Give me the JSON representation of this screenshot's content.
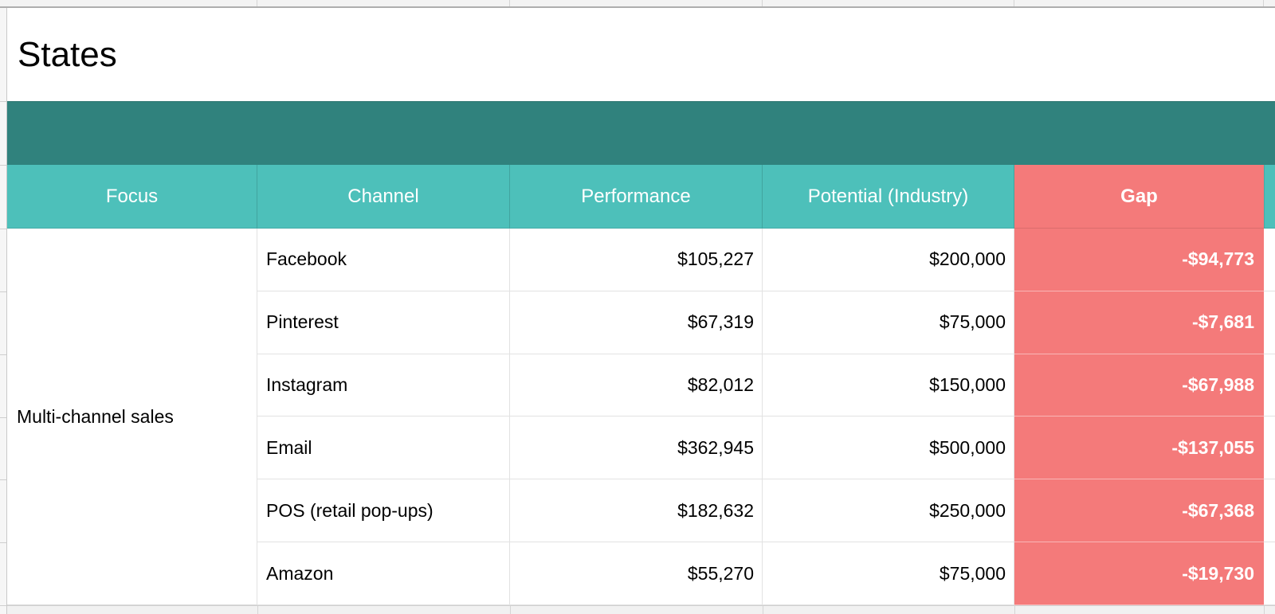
{
  "colors": {
    "band_teal": "#30827D",
    "header_teal": "#4DC0BA",
    "gap_red": "#F47A7A"
  },
  "sheet": {
    "title": "States",
    "columns": [
      "Focus",
      "Channel",
      "Performance",
      "Potential (Industry)",
      "Gap"
    ],
    "focus_label": "Multi-channel sales",
    "rows": [
      {
        "channel": "Facebook",
        "performance": "$105,227",
        "potential": "$200,000",
        "gap": "-$94,773"
      },
      {
        "channel": "Pinterest",
        "performance": "$67,319",
        "potential": "$75,000",
        "gap": "-$7,681"
      },
      {
        "channel": "Instagram",
        "performance": "$82,012",
        "potential": "$150,000",
        "gap": "-$67,988"
      },
      {
        "channel": "Email",
        "performance": "$362,945",
        "potential": "$500,000",
        "gap": "-$137,055"
      },
      {
        "channel": "POS (retail pop-ups)",
        "performance": "$182,632",
        "potential": "$250,000",
        "gap": "-$67,368"
      },
      {
        "channel": "Amazon",
        "performance": "$55,270",
        "potential": "$75,000",
        "gap": "-$19,730"
      }
    ]
  }
}
